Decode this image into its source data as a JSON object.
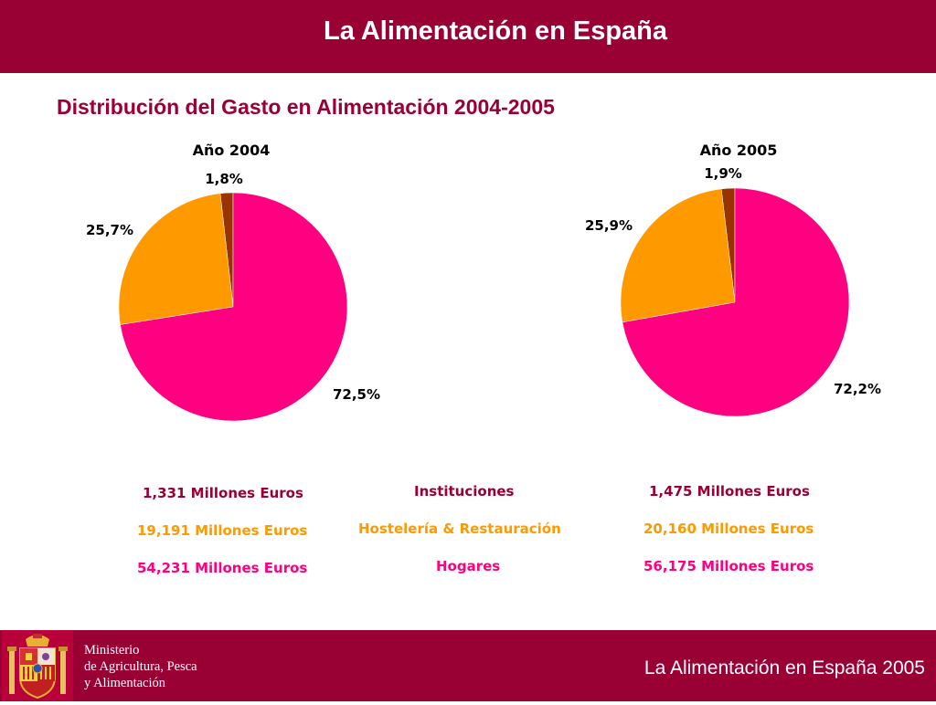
{
  "header": {
    "title": "La Alimentación en España"
  },
  "subtitle": "Distribución del Gasto en Alimentación 2004-2005",
  "colors": {
    "brand": "#990033",
    "hogares": "#ff0080",
    "hosteleria": "#ff9900",
    "instituciones": "#993300"
  },
  "chart_data": [
    {
      "type": "pie",
      "title": "Año 2004",
      "slices": [
        {
          "name": "Instituciones",
          "value": 1.8,
          "label": "1,8%",
          "color": "#993300"
        },
        {
          "name": "Hostelería & Restauración",
          "value": 25.7,
          "label": "25,7%",
          "color": "#ff9900"
        },
        {
          "name": "Hogares",
          "value": 72.5,
          "label": "72,5%",
          "color": "#ff0080"
        }
      ]
    },
    {
      "type": "pie",
      "title": "Año 2005",
      "slices": [
        {
          "name": "Instituciones",
          "value": 1.9,
          "label": "1,9%",
          "color": "#993300"
        },
        {
          "name": "Hostelería & Restauración",
          "value": 25.9,
          "label": "25,9%",
          "color": "#ff9900"
        },
        {
          "name": "Hogares",
          "value": 72.2,
          "label": "72,2%",
          "color": "#ff0080"
        }
      ]
    }
  ],
  "legend": {
    "categories": [
      {
        "label": "Instituciones",
        "left": "1,331 Millones Euros",
        "right": "1,475 Millones Euros",
        "color": "#990033"
      },
      {
        "label": "Hostelería & Restauración",
        "left": "19,191 Millones Euros",
        "right": "20,160 Millones Euros",
        "color": "#ff9900"
      },
      {
        "label": "Hogares",
        "left": "54,231 Millones Euros",
        "right": "56,175 Millones Euros",
        "color": "#ff0080"
      }
    ]
  },
  "footer": {
    "ministry_lines": [
      "Ministerio",
      "de Agricultura, Pesca",
      "y Alimentación"
    ],
    "title": "La Alimentación en España 2005"
  }
}
